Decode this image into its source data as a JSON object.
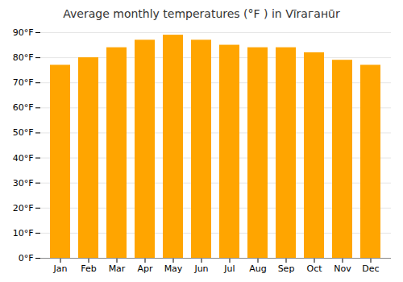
{
  "chart_data": {
    "type": "bar",
    "title": "Average monthly temperatures (°F ) in Vīraганūr",
    "categories": [
      "Jan",
      "Feb",
      "Mar",
      "Apr",
      "May",
      "Jun",
      "Jul",
      "Aug",
      "Sep",
      "Oct",
      "Nov",
      "Dec"
    ],
    "values": [
      77,
      80,
      84,
      87,
      89,
      87,
      85,
      84,
      84,
      82,
      79,
      77
    ],
    "color": "#FFA500",
    "ylim": [
      0,
      90
    ],
    "yticks": [
      {
        "value": 0,
        "label": "0°F"
      },
      {
        "value": 10,
        "label": "10°F"
      },
      {
        "value": 20,
        "label": "20°F"
      },
      {
        "value": 30,
        "label": "30°F"
      },
      {
        "value": 40,
        "label": "40°F"
      },
      {
        "value": 50,
        "label": "50°F"
      },
      {
        "value": 60,
        "label": "60°F"
      },
      {
        "value": 70,
        "label": "70°F"
      },
      {
        "value": 80,
        "label": "80°F"
      },
      {
        "value": 90,
        "label": "90°F"
      }
    ],
    "grid": true
  }
}
